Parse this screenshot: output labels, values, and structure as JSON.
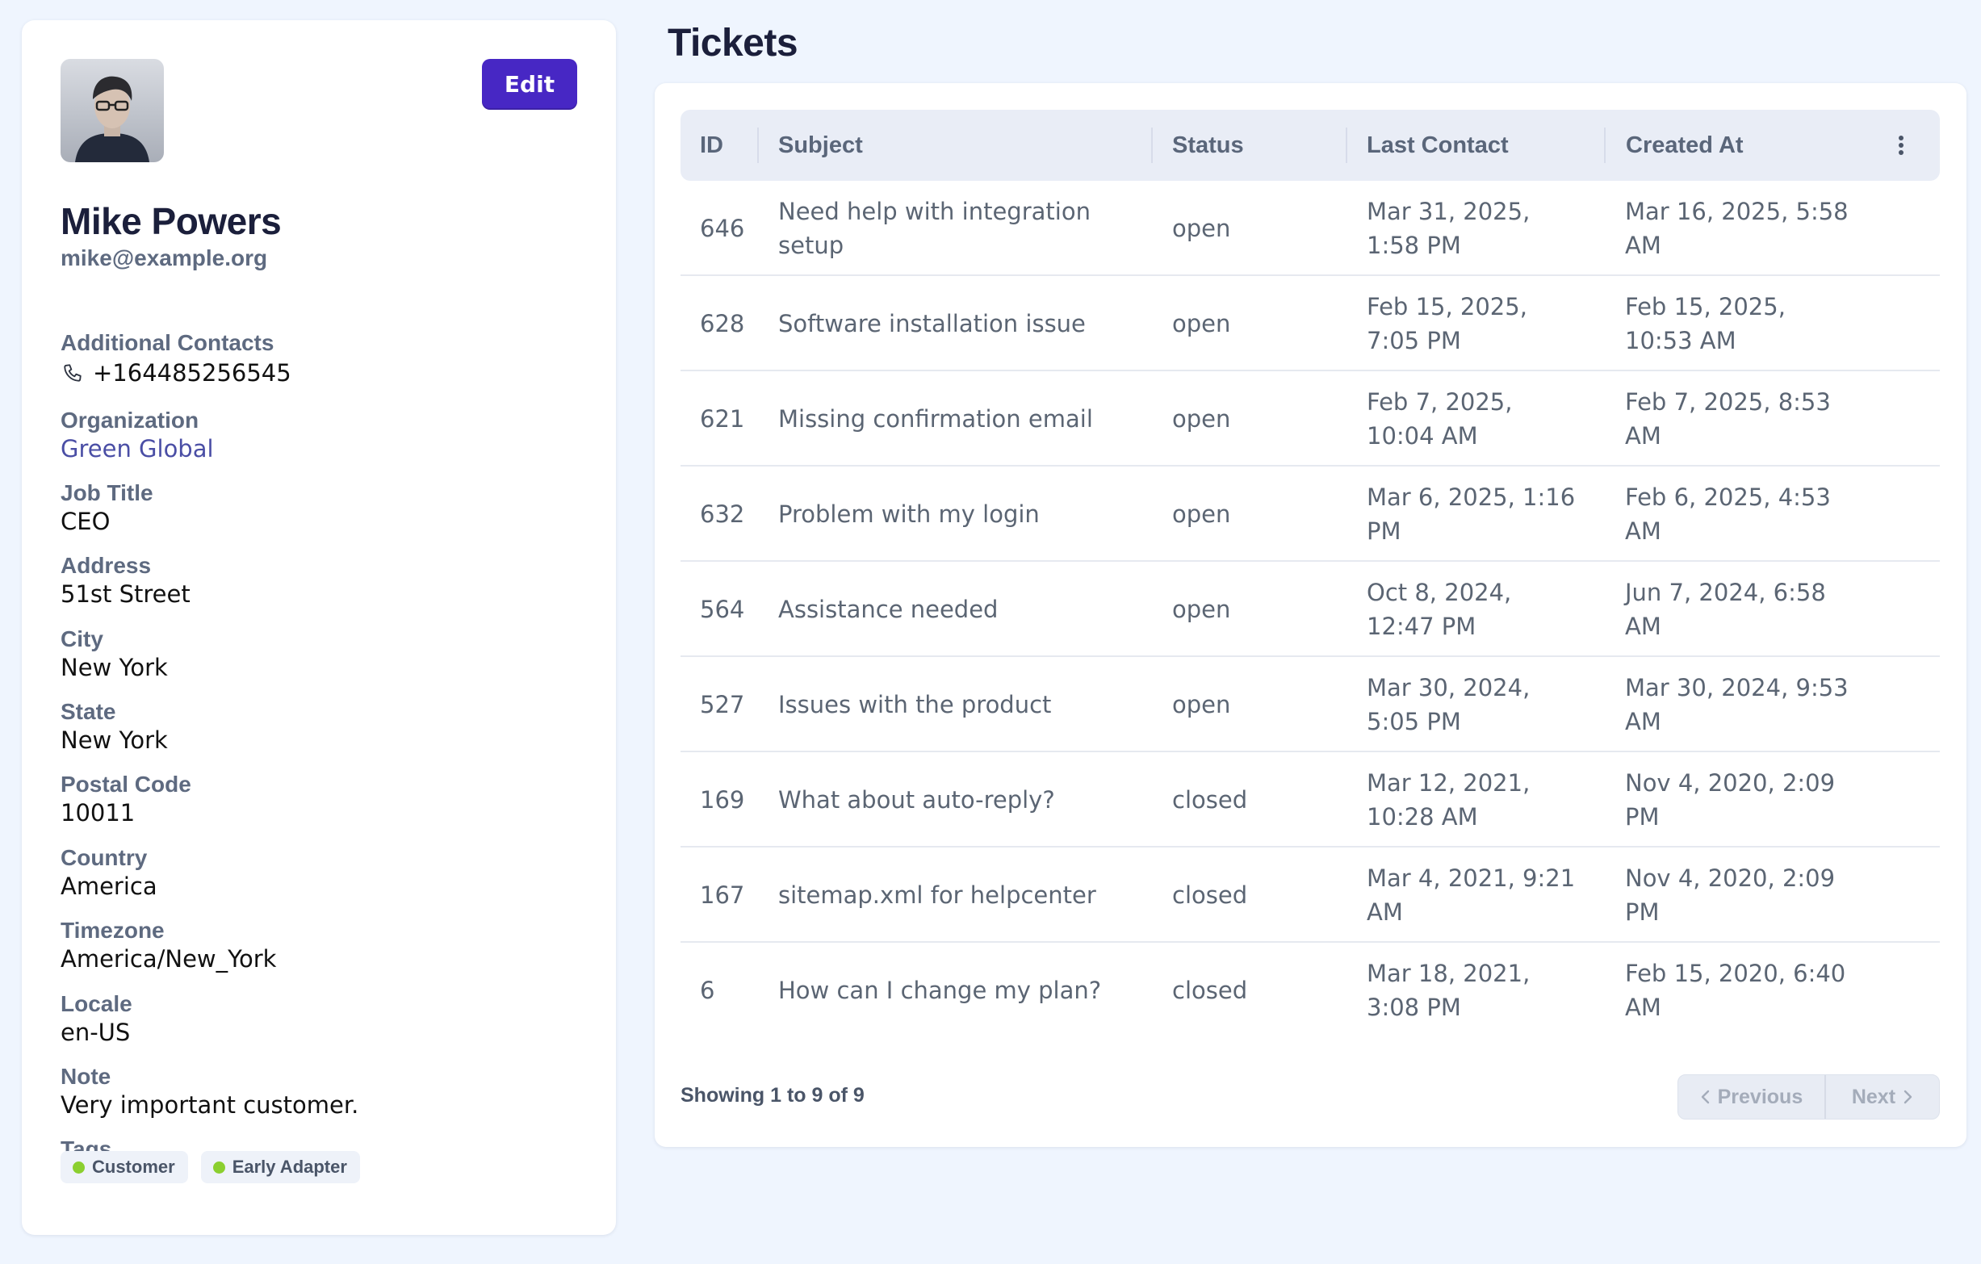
{
  "profile": {
    "edit_label": "Edit",
    "name": "Mike Powers",
    "email": "mike@example.org",
    "additional_contacts_label": "Additional Contacts",
    "phone": "+164485256545",
    "phone_icon": "phone-icon",
    "fields": [
      {
        "label": "Organization",
        "value": "Green Global",
        "link": true
      },
      {
        "label": "Job Title",
        "value": "CEO"
      },
      {
        "label": "Address",
        "value": "51st Street"
      },
      {
        "label": "City",
        "value": "New York"
      },
      {
        "label": "State",
        "value": "New York"
      },
      {
        "label": "Postal Code",
        "value": "10011"
      },
      {
        "label": "Country",
        "value": "America"
      },
      {
        "label": "Timezone",
        "value": "America/New_York"
      },
      {
        "label": "Locale",
        "value": "en-US"
      },
      {
        "label": "Note",
        "value": "Very important customer."
      }
    ],
    "tags_label": "Tags",
    "tags": [
      "Customer",
      "Early Adapter"
    ],
    "tag_dot_color": "#8bcf2f",
    "accent_color": "#4727c4"
  },
  "tickets": {
    "title": "Tickets",
    "columns": [
      "ID",
      "Subject",
      "Status",
      "Last Contact",
      "Created At"
    ],
    "menu_icon": "more-vertical-icon",
    "rows": [
      {
        "id": "646",
        "subject": "Need help with integration setup",
        "status": "open",
        "last_contact": "Mar 31, 2025, 1:58 PM",
        "created_at": "Mar 16, 2025, 5:58 AM"
      },
      {
        "id": "628",
        "subject": "Software installation issue",
        "status": "open",
        "last_contact": "Feb 15, 2025, 7:05 PM",
        "created_at": "Feb 15, 2025, 10:53 AM"
      },
      {
        "id": "621",
        "subject": "Missing confirmation email",
        "status": "open",
        "last_contact": "Feb 7, 2025, 10:04 AM",
        "created_at": "Feb 7, 2025, 8:53 AM"
      },
      {
        "id": "632",
        "subject": "Problem with my login",
        "status": "open",
        "last_contact": "Mar 6, 2025, 1:16 PM",
        "created_at": "Feb 6, 2025, 4:53 AM"
      },
      {
        "id": "564",
        "subject": "Assistance needed",
        "status": "open",
        "last_contact": "Oct 8, 2024, 12:47 PM",
        "created_at": "Jun 7, 2024, 6:58 AM"
      },
      {
        "id": "527",
        "subject": "Issues with the product",
        "status": "open",
        "last_contact": "Mar 30, 2024, 5:05 PM",
        "created_at": "Mar 30, 2024, 9:53 AM"
      },
      {
        "id": "169",
        "subject": "What about auto-reply?",
        "status": "closed",
        "last_contact": "Mar 12, 2021, 10:28 AM",
        "created_at": "Nov 4, 2020, 2:09 PM"
      },
      {
        "id": "167",
        "subject": "sitemap.xml for helpcenter",
        "status": "closed",
        "last_contact": "Mar 4, 2021, 9:21 AM",
        "created_at": "Nov 4, 2020, 2:09 PM"
      },
      {
        "id": "6",
        "subject": "How can I change my plan?",
        "status": "closed",
        "last_contact": "Mar 18, 2021, 3:08 PM",
        "created_at": "Feb 15, 2020, 6:40 AM"
      }
    ],
    "footer": "Showing 1 to 9 of 9",
    "previous_label": "Previous",
    "next_label": "Next"
  }
}
